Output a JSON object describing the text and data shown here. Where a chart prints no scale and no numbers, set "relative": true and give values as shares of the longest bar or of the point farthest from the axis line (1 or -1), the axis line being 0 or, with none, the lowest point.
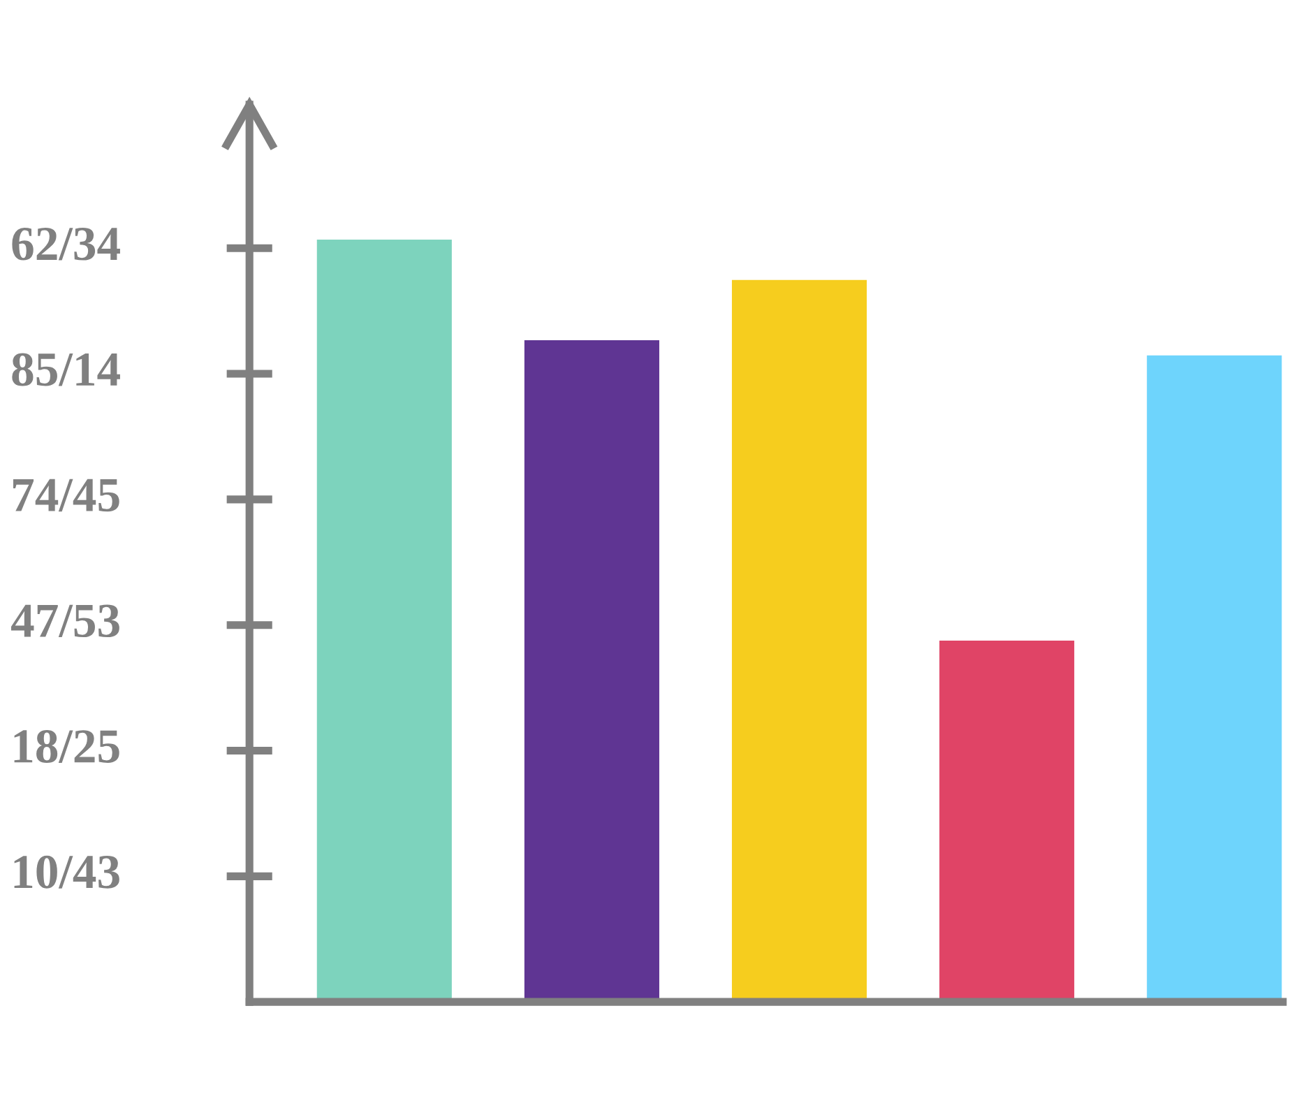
{
  "chart_data": {
    "type": "bar",
    "relative": true,
    "categories": [
      null,
      null,
      null,
      null,
      null
    ],
    "values": [
      1.0,
      0.868,
      0.947,
      0.474,
      0.848
    ],
    "colors": [
      "#7dd3bd",
      "#5f3593",
      "#f6cd1e",
      "#e04466",
      "#6ed4fc"
    ],
    "annotations": [
      "62/34",
      "85/14",
      "74/45",
      "47/53",
      "18/25",
      "10/43"
    ],
    "grid": false,
    "legend": false
  }
}
